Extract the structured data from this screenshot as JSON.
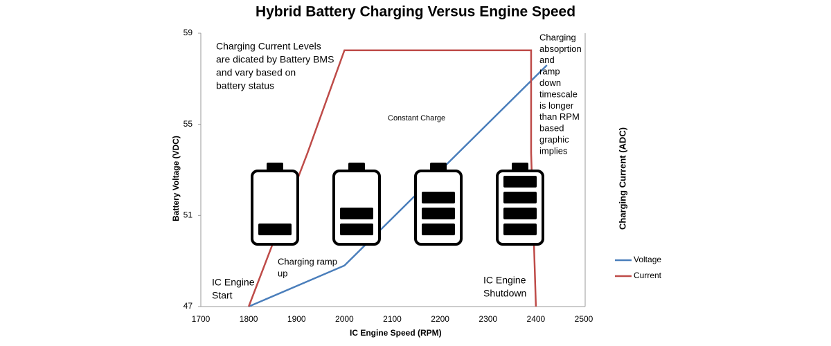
{
  "chart_data": {
    "type": "line",
    "title": "Hybrid Battery Charging Versus Engine Speed",
    "x_label": "IC Engine Speed (RPM)",
    "y_label": "Battery Voltage (VDC)",
    "y2_label": "Charging Current (ADC)",
    "xlim": [
      1700,
      2500
    ],
    "xticks": [
      1700,
      1800,
      1900,
      2000,
      2100,
      2200,
      2300,
      2400,
      2500
    ],
    "ylim": [
      47,
      59
    ],
    "yticks": [
      47,
      51,
      55,
      59
    ],
    "y2lim": [
      0,
      8
    ],
    "grid": false,
    "legend": "right",
    "series": [
      {
        "name": "Voltage",
        "color": "#4a7ebb",
        "x": [
          1800,
          2000,
          2423
        ],
        "values": [
          47,
          48.8,
          57.6
        ]
      },
      {
        "name": "Current",
        "color": "#be4b48",
        "axis": "y2",
        "x": [
          1800,
          1923,
          2000,
          2390,
          2390,
          2400
        ],
        "values": [
          0,
          4.5,
          7.5,
          7.5,
          4.5,
          0
        ]
      }
    ],
    "annotations": [
      [
        "Charging Current Levels",
        "are dicated by Battery BMS",
        "and vary based on",
        "battery status"
      ],
      [
        "Constant Charge"
      ],
      [
        "Charging",
        "absoprtion",
        "and",
        "ramp",
        "down",
        "timescale",
        "is longer",
        "than RPM",
        "based",
        "graphic",
        "implies"
      ],
      [
        "Charging  ramp",
        "up"
      ],
      [
        "IC Engine",
        "Start"
      ],
      [
        "IC Engine",
        "Shutdown"
      ]
    ]
  }
}
